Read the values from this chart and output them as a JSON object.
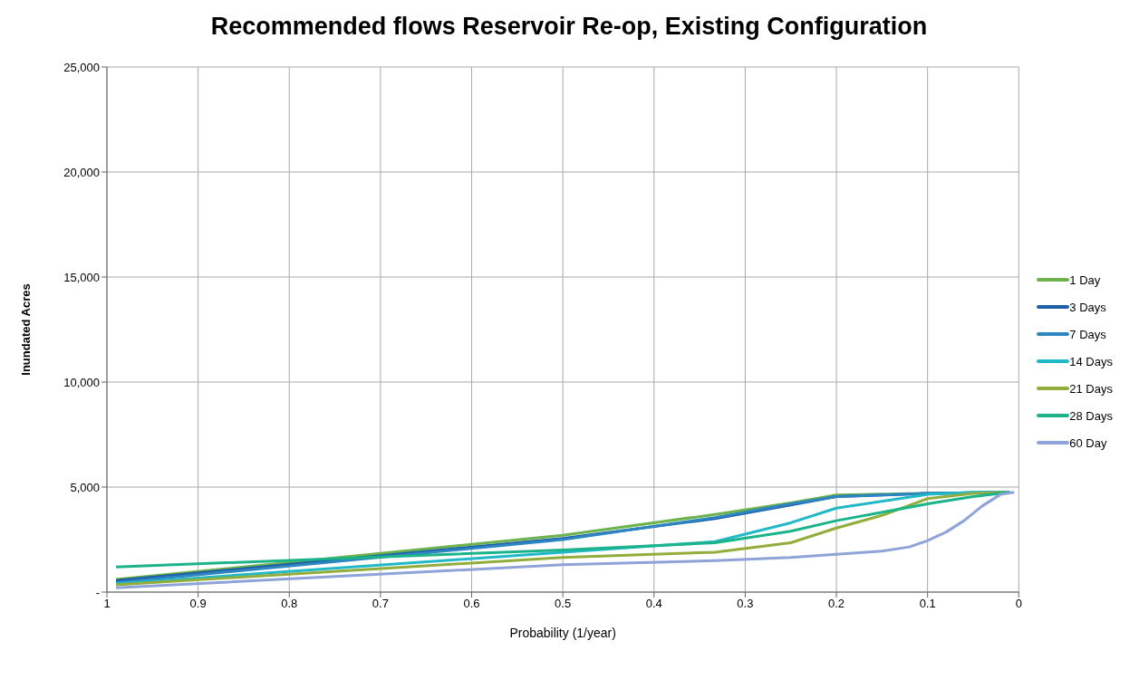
{
  "chart_data": {
    "type": "line",
    "title": "Recommended flows Reservoir Re-op, Existing Configuration",
    "xlabel": "Probability  (1/year)",
    "ylabel": "Inundated Acres",
    "xlim": [
      1,
      0
    ],
    "xticks": [
      1,
      0.9,
      0.8,
      0.7,
      0.6,
      0.5,
      0.4,
      0.3,
      0.2,
      0.1,
      0
    ],
    "ylim": [
      0,
      25000
    ],
    "yticks": [
      {
        "value": 0,
        "label": "-"
      },
      {
        "value": 5000,
        "label": "5,000"
      },
      {
        "value": 10000,
        "label": "10,000"
      },
      {
        "value": 15000,
        "label": "15,000"
      },
      {
        "value": 20000,
        "label": "20,000"
      },
      {
        "value": 25000,
        "label": "25,000"
      }
    ],
    "grid": true,
    "legend": "right",
    "marker": "none",
    "line_style": "solid",
    "series": [
      {
        "name": "1 Day",
        "color": "#6bb34a",
        "x": [
          0.99,
          0.5,
          0.333,
          0.25,
          0.2,
          0.1,
          0.01
        ],
        "values": [
          600,
          2700,
          3700,
          4250,
          4620,
          4700,
          4750
        ]
      },
      {
        "name": "3 Days",
        "color": "#1f5fa8",
        "x": [
          0.99,
          0.5,
          0.333,
          0.25,
          0.2,
          0.1,
          0.01
        ],
        "values": [
          550,
          2550,
          3500,
          4150,
          4550,
          4700,
          4750
        ]
      },
      {
        "name": "7 Days",
        "color": "#2e86c1",
        "x": [
          0.99,
          0.5,
          0.333,
          0.25,
          0.2,
          0.1,
          0.01
        ],
        "values": [
          450,
          2500,
          3550,
          4200,
          4550,
          4700,
          4750
        ]
      },
      {
        "name": "14 Days",
        "color": "#21b8c8",
        "x": [
          0.99,
          0.5,
          0.333,
          0.25,
          0.2,
          0.1,
          0.05,
          0.01
        ],
        "values": [
          400,
          1900,
          2400,
          3300,
          4000,
          4650,
          4750,
          4750
        ]
      },
      {
        "name": "21 Days",
        "color": "#93ad3c",
        "x": [
          0.99,
          0.5,
          0.333,
          0.25,
          0.2,
          0.15,
          0.1,
          0.05,
          0.01
        ],
        "values": [
          350,
          1650,
          1900,
          2350,
          3050,
          3650,
          4450,
          4700,
          4750
        ]
      },
      {
        "name": "28 Days",
        "color": "#1bb38a",
        "x": [
          0.99,
          0.5,
          0.333,
          0.25,
          0.2,
          0.1,
          0.05,
          0.01
        ],
        "values": [
          1200,
          2000,
          2350,
          2900,
          3400,
          4200,
          4550,
          4750
        ]
      },
      {
        "name": "60 Day",
        "color": "#8ea3d8",
        "x": [
          0.99,
          0.5,
          0.333,
          0.25,
          0.2,
          0.15,
          0.12,
          0.1,
          0.08,
          0.06,
          0.04,
          0.02,
          0.005
        ],
        "values": [
          200,
          1300,
          1500,
          1650,
          1800,
          1950,
          2150,
          2450,
          2850,
          3400,
          4100,
          4650,
          4750
        ]
      }
    ]
  }
}
